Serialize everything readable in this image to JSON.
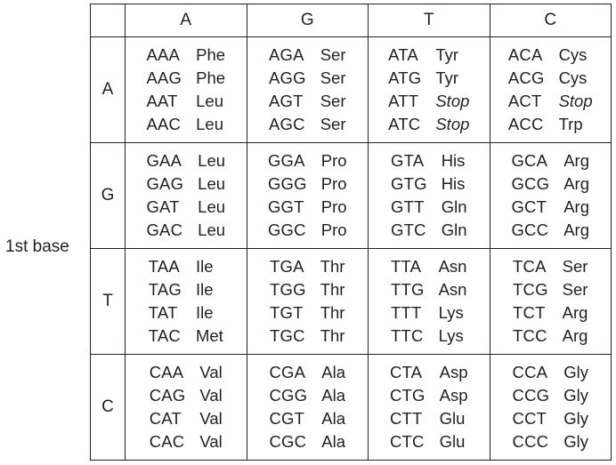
{
  "side_label": "1st base",
  "columns": [
    "A",
    "G",
    "T",
    "C"
  ],
  "rows": [
    {
      "label": "A",
      "cells": [
        [
          [
            "AAA",
            "Phe"
          ],
          [
            "AAG",
            "Phe"
          ],
          [
            "AAT",
            "Leu"
          ],
          [
            "AAC",
            "Leu"
          ]
        ],
        [
          [
            "AGA",
            "Ser"
          ],
          [
            "AGG",
            "Ser"
          ],
          [
            "AGT",
            "Ser"
          ],
          [
            "AGC",
            "Ser"
          ]
        ],
        [
          [
            "ATA",
            "Tyr"
          ],
          [
            "ATG",
            "Tyr"
          ],
          [
            "ATT",
            "Stop"
          ],
          [
            "ATC",
            "Stop"
          ]
        ],
        [
          [
            "ACA",
            "Cys"
          ],
          [
            "ACG",
            "Cys"
          ],
          [
            "ACT",
            "Stop"
          ],
          [
            "ACC",
            "Trp"
          ]
        ]
      ]
    },
    {
      "label": "G",
      "cells": [
        [
          [
            "GAA",
            "Leu"
          ],
          [
            "GAG",
            "Leu"
          ],
          [
            "GAT",
            "Leu"
          ],
          [
            "GAC",
            "Leu"
          ]
        ],
        [
          [
            "GGA",
            "Pro"
          ],
          [
            "GGG",
            "Pro"
          ],
          [
            "GGT",
            "Pro"
          ],
          [
            "GGC",
            "Pro"
          ]
        ],
        [
          [
            "GTA",
            "His"
          ],
          [
            "GTG",
            "His"
          ],
          [
            "GTT",
            "Gln"
          ],
          [
            "GTC",
            "Gln"
          ]
        ],
        [
          [
            "GCA",
            "Arg"
          ],
          [
            "GCG",
            "Arg"
          ],
          [
            "GCT",
            "Arg"
          ],
          [
            "GCC",
            "Arg"
          ]
        ]
      ]
    },
    {
      "label": "T",
      "cells": [
        [
          [
            "TAA",
            "Ile"
          ],
          [
            "TAG",
            "Ile"
          ],
          [
            "TAT",
            "Ile"
          ],
          [
            "TAC",
            "Met"
          ]
        ],
        [
          [
            "TGA",
            "Thr"
          ],
          [
            "TGG",
            "Thr"
          ],
          [
            "TGT",
            "Thr"
          ],
          [
            "TGC",
            "Thr"
          ]
        ],
        [
          [
            "TTA",
            "Asn"
          ],
          [
            "TTG",
            "Asn"
          ],
          [
            "TTT",
            "Lys"
          ],
          [
            "TTC",
            "Lys"
          ]
        ],
        [
          [
            "TCA",
            "Ser"
          ],
          [
            "TCG",
            "Ser"
          ],
          [
            "TCT",
            "Arg"
          ],
          [
            "TCC",
            "Arg"
          ]
        ]
      ]
    },
    {
      "label": "C",
      "cells": [
        [
          [
            "CAA",
            "Val"
          ],
          [
            "CAG",
            "Val"
          ],
          [
            "CAT",
            "Val"
          ],
          [
            "CAC",
            "Val"
          ]
        ],
        [
          [
            "CGA",
            "Ala"
          ],
          [
            "CGG",
            "Ala"
          ],
          [
            "CGT",
            "Ala"
          ],
          [
            "CGC",
            "Ala"
          ]
        ],
        [
          [
            "CTA",
            "Asp"
          ],
          [
            "CTG",
            "Asp"
          ],
          [
            "CTT",
            "Glu"
          ],
          [
            "CTC",
            "Glu"
          ]
        ],
        [
          [
            "CCA",
            "Gly"
          ],
          [
            "CCG",
            "Gly"
          ],
          [
            "CCT",
            "Gly"
          ],
          [
            "CCC",
            "Gly"
          ]
        ]
      ]
    }
  ]
}
